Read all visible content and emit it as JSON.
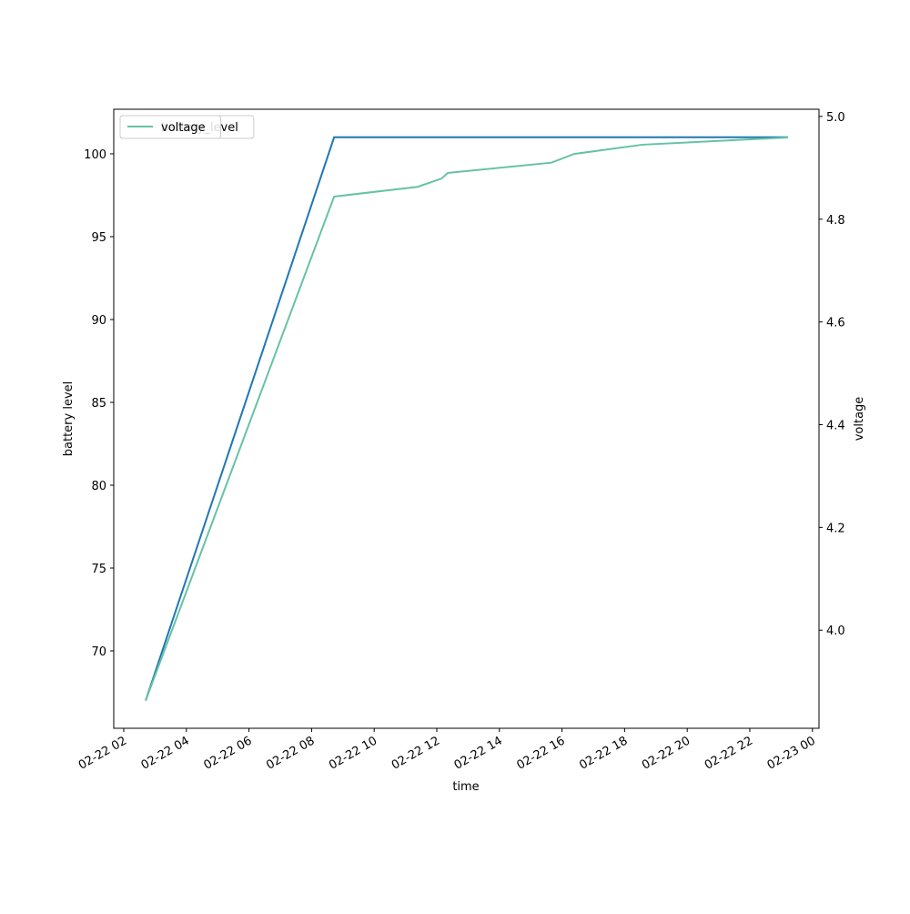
{
  "chart_data": {
    "type": "line",
    "x_label": "time",
    "y_label": "battery level",
    "y2_label": "voltage",
    "xlim": [
      1.68,
      24.21
    ],
    "xticks": [
      {
        "value": 2,
        "label": "02-22 02"
      },
      {
        "value": 4,
        "label": "02-22 04"
      },
      {
        "value": 6,
        "label": "02-22 06"
      },
      {
        "value": 8,
        "label": "02-22 08"
      },
      {
        "value": 10,
        "label": "02-22 10"
      },
      {
        "value": 12,
        "label": "02-22 12"
      },
      {
        "value": 14,
        "label": "02-22 14"
      },
      {
        "value": 16,
        "label": "02-22 16"
      },
      {
        "value": 18,
        "label": "02-22 18"
      },
      {
        "value": 20,
        "label": "02-22 20"
      },
      {
        "value": 22,
        "label": "02-22 22"
      },
      {
        "value": 24,
        "label": "02-23 00"
      }
    ],
    "ylim": [
      65.33,
      102.69
    ],
    "yticks": [
      70,
      75,
      80,
      85,
      90,
      95,
      100
    ],
    "y2lim": [
      3.809,
      5.014
    ],
    "y2ticks": [
      {
        "value": 4,
        "label": "4.0"
      },
      4.2,
      4.4,
      4.6,
      4.8,
      {
        "value": 5,
        "label": "5.0"
      }
    ],
    "legend": "upper left",
    "series": [
      {
        "name": "battery_level",
        "color": "#1f77b4",
        "axis": "y",
        "x": [
          2.7,
          8.72,
          23.22
        ],
        "values": [
          67,
          101,
          101
        ]
      },
      {
        "name": "voltage",
        "color": "#66c2a5",
        "axis": "y2",
        "x": [
          2.7,
          8.72,
          11.39,
          12.15,
          12.35,
          15.66,
          16.39,
          18.57,
          23.22
        ],
        "values": [
          3.863,
          4.844,
          4.863,
          4.879,
          4.89,
          4.91,
          4.927,
          4.945,
          4.959
        ]
      }
    ]
  }
}
